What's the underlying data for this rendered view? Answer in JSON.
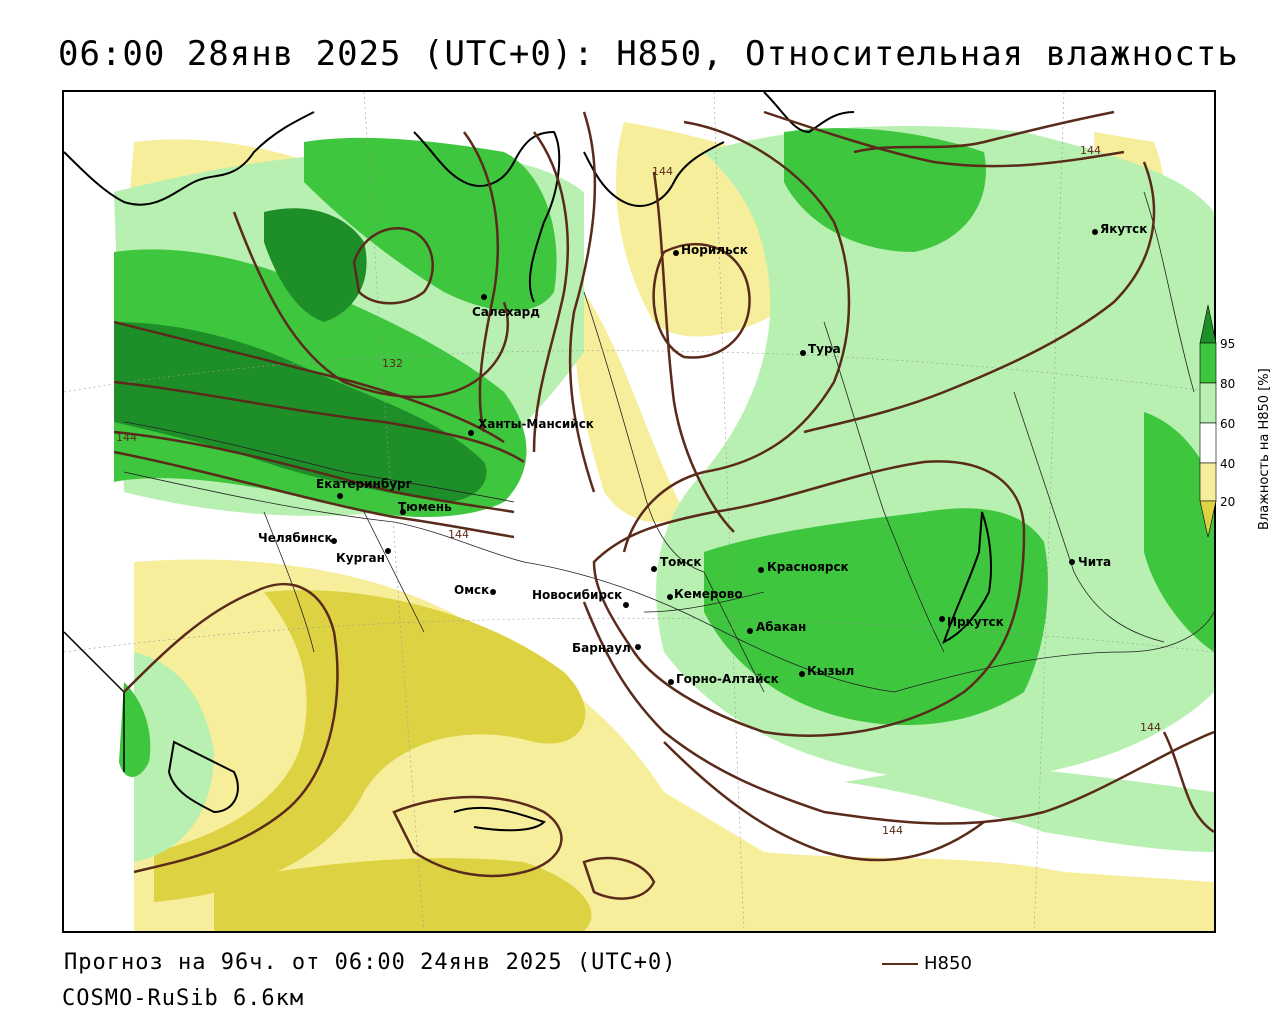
{
  "title": "06:00 28янв 2025 (UTC+0): H850, Относительная влажность",
  "footer": {
    "forecast": "Прогноз на 96ч. от 06:00 24янв 2025 (UTC+0)",
    "model": "COSMO-RuSib 6.6км",
    "contour_legend": "H850"
  },
  "legend": {
    "axis_label": "Влажность на H850 [%]",
    "ticks": [
      "95",
      "80",
      "60",
      "40",
      "20"
    ],
    "colors": {
      "c95": "#1e8f28",
      "c80": "#3fc63f",
      "c60": "#b7f0b0",
      "c40": "#ffffff",
      "c20": "#f7ee9c",
      "c_low": "#ddd342"
    }
  },
  "contour_color": "#5a2a1a",
  "contour_labels": [
    "144",
    "144",
    "132",
    "144",
    "144",
    "144",
    "144"
  ],
  "cities": [
    {
      "name": "Якутск"
    },
    {
      "name": "Норильск"
    },
    {
      "name": "Салехард"
    },
    {
      "name": "Тура"
    },
    {
      "name": "Ханты-Мансийск"
    },
    {
      "name": "Екатеринбург"
    },
    {
      "name": "Тюмень"
    },
    {
      "name": "Челябинск"
    },
    {
      "name": "Курган"
    },
    {
      "name": "Омск"
    },
    {
      "name": "Новосибирск"
    },
    {
      "name": "Томск"
    },
    {
      "name": "Кемерово"
    },
    {
      "name": "Красноярск"
    },
    {
      "name": "Абакан"
    },
    {
      "name": "Барнаул"
    },
    {
      "name": "Горно-Алтайск"
    },
    {
      "name": "Кызыл"
    },
    {
      "name": "Иркутск"
    },
    {
      "name": "Чита"
    }
  ]
}
